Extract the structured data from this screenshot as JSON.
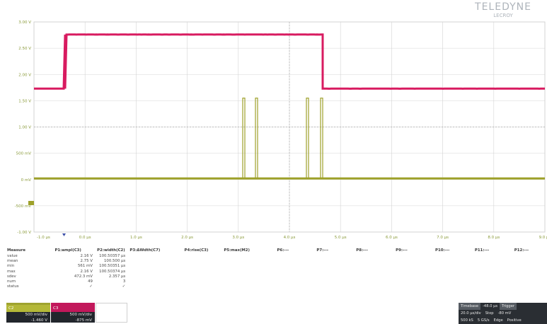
{
  "brand": {
    "name": "TELEDYNE",
    "sub": "LECROY"
  },
  "scope": {
    "y_ticks": [
      "3.00 V",
      "2.50 V",
      "2.00 V",
      "1.50 V",
      "1.00 V",
      "500 mV",
      "0 mV",
      "-500 mV",
      "-1.00 V"
    ],
    "x_ticks": [
      "-1.0 µs",
      "0.0 µs",
      "1.0 µs",
      "2.0 µs",
      "3.0 µs",
      "4.0 µs",
      "5.0 µs",
      "6.0 µs",
      "7.0 µs",
      "8.0 µs",
      "9.0 µs"
    ],
    "pink_color": "#d81b60",
    "olive_color": "#9ea12a",
    "pink_levels": {
      "low": 1.73,
      "high": 2.76
    },
    "olive_levels": {
      "base": 0.02,
      "pulse_top": 1.55
    }
  },
  "measure": {
    "header": [
      "Measure",
      "P1:ampl(C3)",
      "P2:width(C2)",
      "P3:ΔWdth(C7)",
      "P4:rise(C3)",
      "P5:max(M2)",
      "P6:---",
      "P7:---",
      "P8:---",
      "P9:---",
      "P10:---",
      "P11:---",
      "P12:---"
    ],
    "rows": [
      [
        "value",
        "2.16 V",
        "100.50357 µs",
        "",
        "",
        "",
        "",
        "",
        "",
        "",
        "",
        "",
        ""
      ],
      [
        "mean",
        "2.75 V",
        "100.500 µs",
        "",
        "",
        "",
        "",
        "",
        "",
        "",
        "",
        "",
        ""
      ],
      [
        "min",
        "561 mV",
        "100.50351 µs",
        "",
        "",
        "",
        "",
        "",
        "",
        "",
        "",
        "",
        ""
      ],
      [
        "max",
        "2.16 V",
        "100.50374 µs",
        "",
        "",
        "",
        "",
        "",
        "",
        "",
        "",
        "",
        ""
      ],
      [
        "sdev",
        "472.3 mV",
        "2.357 µs",
        "",
        "",
        "",
        "",
        "",
        "",
        "",
        "",
        "",
        ""
      ],
      [
        "num",
        "49",
        "3",
        "",
        "",
        "",
        "",
        "",
        "",
        "",
        "",
        "",
        ""
      ],
      [
        "status",
        "✓",
        "✓",
        "",
        "",
        "",
        "",
        "",
        "",
        "",
        "",
        "",
        ""
      ]
    ]
  },
  "channels": {
    "c2": {
      "label": "C2",
      "scale": "500 mV/div",
      "offset": "-1.460 V"
    },
    "c3": {
      "label": "C3",
      "scale": "500 mV/div",
      "offset": "-875 mV"
    }
  },
  "timebase": {
    "tabs": [
      "Timebase",
      "-48.0 µs",
      "Trigger"
    ],
    "row2": [
      "20.0 µs/div",
      "Stop",
      "-80 mV"
    ],
    "row3": [
      "500 kS",
      "5 GS/s",
      "Edge",
      "Positive"
    ]
  }
}
